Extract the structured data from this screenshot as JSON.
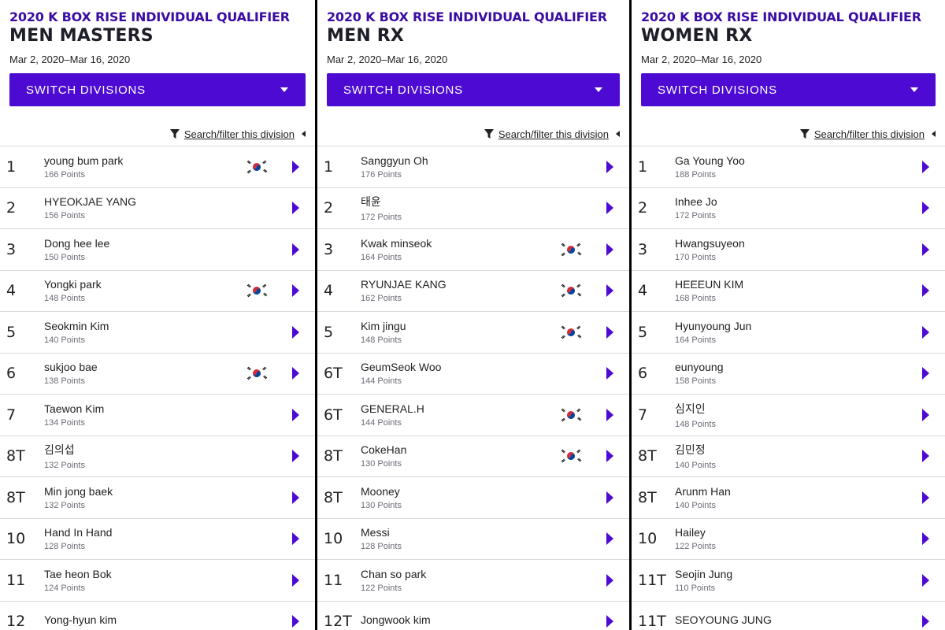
{
  "colors": {
    "brand": "#4d0ad3",
    "event_title": "#3a0ca3",
    "divider": "#d9d9de"
  },
  "panels": [
    {
      "event": "2020 K BOX RISE INDIVIDUAL QUALIFIER",
      "division": "MEN MASTERS",
      "dates": "Mar 2, 2020–Mar 16, 2020",
      "switch_label": "SWITCH DIVISIONS",
      "filter_label": "Search/filter this division",
      "rows": [
        {
          "rank": "1",
          "name": "young bum park",
          "points": "166 Points",
          "flag": true
        },
        {
          "rank": "2",
          "name": "HYEOKJAE YANG",
          "points": "156 Points",
          "flag": false
        },
        {
          "rank": "3",
          "name": "Dong hee lee",
          "points": "150 Points",
          "flag": false
        },
        {
          "rank": "4",
          "name": "Yongki park",
          "points": "148 Points",
          "flag": true
        },
        {
          "rank": "5",
          "name": "Seokmin Kim",
          "points": "140 Points",
          "flag": false
        },
        {
          "rank": "6",
          "name": "sukjoo bae",
          "points": "138 Points",
          "flag": true
        },
        {
          "rank": "7",
          "name": "Taewon Kim",
          "points": "134 Points",
          "flag": false
        },
        {
          "rank": "8T",
          "name": "김의섭",
          "points": "132 Points",
          "flag": false
        },
        {
          "rank": "8T",
          "name": "Min jong baek",
          "points": "132 Points",
          "flag": false
        },
        {
          "rank": "10",
          "name": "Hand In Hand",
          "points": "128 Points",
          "flag": false
        },
        {
          "rank": "11",
          "name": "Tae heon Bok",
          "points": "124 Points",
          "flag": false
        },
        {
          "rank": "12",
          "name": "Yong-hyun kim",
          "points": "",
          "flag": false
        }
      ]
    },
    {
      "event": "2020 K BOX RISE INDIVIDUAL QUALIFIER",
      "division": "MEN RX",
      "dates": "Mar 2, 2020–Mar 16, 2020",
      "switch_label": "SWITCH DIVISIONS",
      "filter_label": "Search/filter this division",
      "rows": [
        {
          "rank": "1",
          "name": "Sanggyun Oh",
          "points": "176 Points",
          "flag": false
        },
        {
          "rank": "2",
          "name": "태윤",
          "points": "172 Points",
          "flag": false
        },
        {
          "rank": "3",
          "name": "Kwak minseok",
          "points": "164 Points",
          "flag": true
        },
        {
          "rank": "4",
          "name": "RYUNJAE KANG",
          "points": "162 Points",
          "flag": true
        },
        {
          "rank": "5",
          "name": "Kim jingu",
          "points": "148 Points",
          "flag": true
        },
        {
          "rank": "6T",
          "name": "GeumSeok Woo",
          "points": "144 Points",
          "flag": false
        },
        {
          "rank": "6T",
          "name": "GENERAL.H",
          "points": "144 Points",
          "flag": true
        },
        {
          "rank": "8T",
          "name": "CokeHan",
          "points": "130 Points",
          "flag": true
        },
        {
          "rank": "8T",
          "name": "Mooney",
          "points": "130 Points",
          "flag": false
        },
        {
          "rank": "10",
          "name": "Messi",
          "points": "128 Points",
          "flag": false
        },
        {
          "rank": "11",
          "name": "Chan so park",
          "points": "122 Points",
          "flag": false
        },
        {
          "rank": "12T",
          "name": "Jongwook kim",
          "points": "",
          "flag": false
        }
      ]
    },
    {
      "event": "2020 K BOX RISE INDIVIDUAL QUALIFIER",
      "division": "WOMEN RX",
      "dates": "Mar 2, 2020–Mar 16, 2020",
      "switch_label": "SWITCH DIVISIONS",
      "filter_label": "Search/filter this division",
      "rows": [
        {
          "rank": "1",
          "name": "Ga Young Yoo",
          "points": "188 Points",
          "flag": false
        },
        {
          "rank": "2",
          "name": "Inhee Jo",
          "points": "172 Points",
          "flag": false
        },
        {
          "rank": "3",
          "name": "Hwangsuyeon",
          "points": "170 Points",
          "flag": false
        },
        {
          "rank": "4",
          "name": "HEEEUN KIM",
          "points": "168 Points",
          "flag": false
        },
        {
          "rank": "5",
          "name": "Hyunyoung Jun",
          "points": "164 Points",
          "flag": false
        },
        {
          "rank": "6",
          "name": "eunyoung",
          "points": "158 Points",
          "flag": false
        },
        {
          "rank": "7",
          "name": "심지인",
          "points": "148 Points",
          "flag": false
        },
        {
          "rank": "8T",
          "name": "김민정",
          "points": "140 Points",
          "flag": false
        },
        {
          "rank": "8T",
          "name": "Arunm Han",
          "points": "140 Points",
          "flag": false
        },
        {
          "rank": "10",
          "name": "Hailey",
          "points": "122 Points",
          "flag": false
        },
        {
          "rank": "11T",
          "name": "Seojin Jung",
          "points": "110 Points",
          "flag": false
        },
        {
          "rank": "11T",
          "name": "SEOYOUNG JUNG",
          "points": "",
          "flag": false
        }
      ]
    }
  ]
}
